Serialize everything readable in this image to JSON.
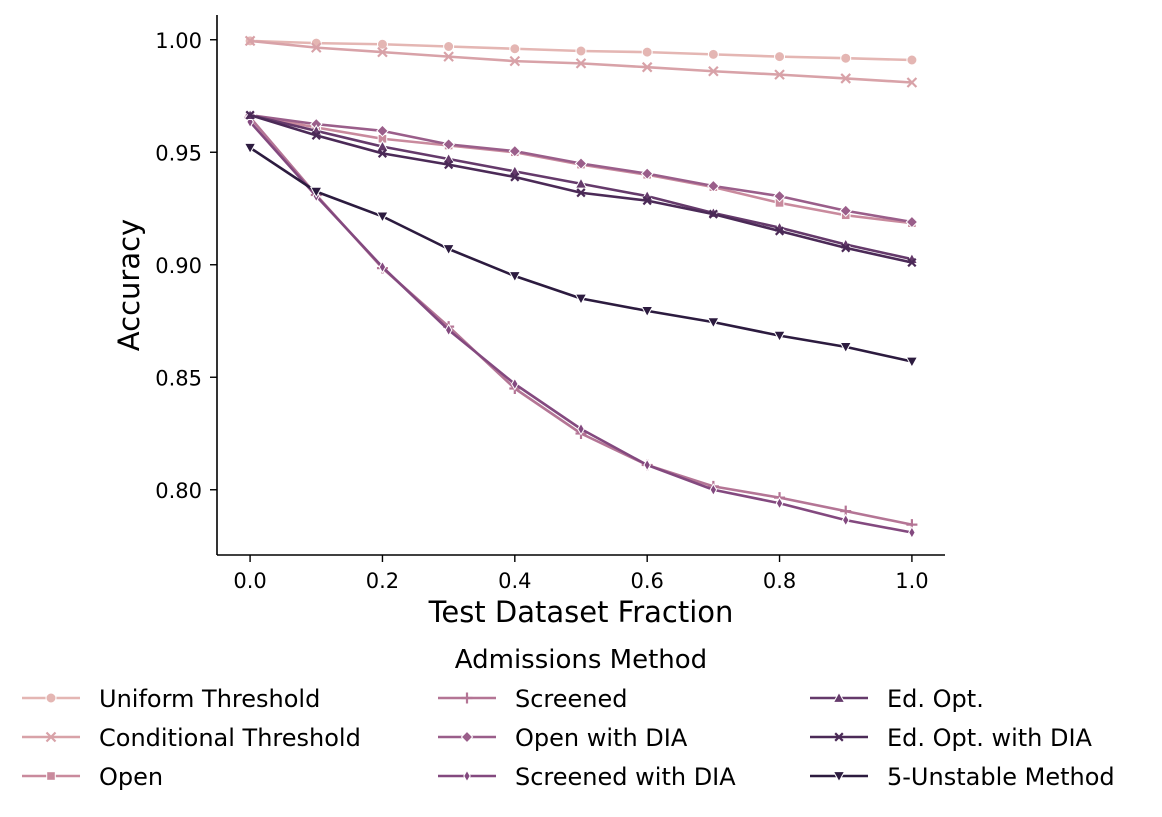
{
  "chart_data": {
    "type": "line",
    "xlabel": "Test Dataset Fraction",
    "ylabel": "Accuracy",
    "xlim": [
      -0.05,
      1.05
    ],
    "ylim": [
      0.771,
      1.011
    ],
    "x_ticks": [
      "0.0",
      "0.2",
      "0.4",
      "0.6",
      "0.8",
      "1.0"
    ],
    "y_ticks": [
      "0.80",
      "0.85",
      "0.90",
      "0.95",
      "1.00"
    ],
    "x": [
      0.0,
      0.1,
      0.2,
      0.3,
      0.4,
      0.5,
      0.6,
      0.7,
      0.8,
      0.9,
      1.0
    ],
    "legend_title": "Admissions Method",
    "legend_position": "bottom",
    "grid": false,
    "series": [
      {
        "name": "Uniform Threshold",
        "marker": "circle",
        "color": "#e4b6b3",
        "values": [
          0.9995,
          0.9985,
          0.998,
          0.997,
          0.996,
          0.995,
          0.9945,
          0.9935,
          0.9925,
          0.9918,
          0.991
        ]
      },
      {
        "name": "Conditional Threshold",
        "marker": "x",
        "color": "#d8a2a8",
        "values": [
          0.9995,
          0.9965,
          0.9945,
          0.9925,
          0.9905,
          0.9895,
          0.9878,
          0.986,
          0.9845,
          0.9828,
          0.981
        ]
      },
      {
        "name": "Open",
        "marker": "square",
        "color": "#c98a9d",
        "values": [
          0.9665,
          0.961,
          0.956,
          0.953,
          0.95,
          0.9445,
          0.94,
          0.9345,
          0.9275,
          0.922,
          0.9185
        ]
      },
      {
        "name": "Screened",
        "marker": "plus",
        "color": "#b47595",
        "values": [
          0.9655,
          0.931,
          0.8985,
          0.8725,
          0.845,
          0.825,
          0.811,
          0.8015,
          0.7965,
          0.7905,
          0.7845
        ]
      },
      {
        "name": "Open with DIA",
        "marker": "diamond",
        "color": "#9a5e8a",
        "values": [
          0.9665,
          0.9625,
          0.9595,
          0.9535,
          0.9505,
          0.945,
          0.9405,
          0.935,
          0.9305,
          0.924,
          0.919
        ]
      },
      {
        "name": "Screened with DIA",
        "marker": "thin_diamond",
        "color": "#83497f",
        "values": [
          0.9635,
          0.9305,
          0.899,
          0.871,
          0.847,
          0.827,
          0.811,
          0.8,
          0.794,
          0.7865,
          0.781
        ]
      },
      {
        "name": "Ed. Opt.",
        "marker": "triangle_up",
        "color": "#653a6b",
        "values": [
          0.9665,
          0.9595,
          0.9525,
          0.947,
          0.9415,
          0.936,
          0.9305,
          0.923,
          0.9165,
          0.909,
          0.9025
        ]
      },
      {
        "name": "Ed. Opt. with DIA",
        "marker": "x_small",
        "color": "#4b2a57",
        "values": [
          0.9665,
          0.9575,
          0.9495,
          0.9445,
          0.939,
          0.932,
          0.9285,
          0.9225,
          0.915,
          0.9075,
          0.901
        ]
      },
      {
        "name": "5-Unstable Method",
        "marker": "triangle_down",
        "color": "#2c1b3f",
        "values": [
          0.952,
          0.9325,
          0.9215,
          0.907,
          0.895,
          0.885,
          0.8795,
          0.8745,
          0.8685,
          0.8635,
          0.857
        ]
      }
    ]
  }
}
